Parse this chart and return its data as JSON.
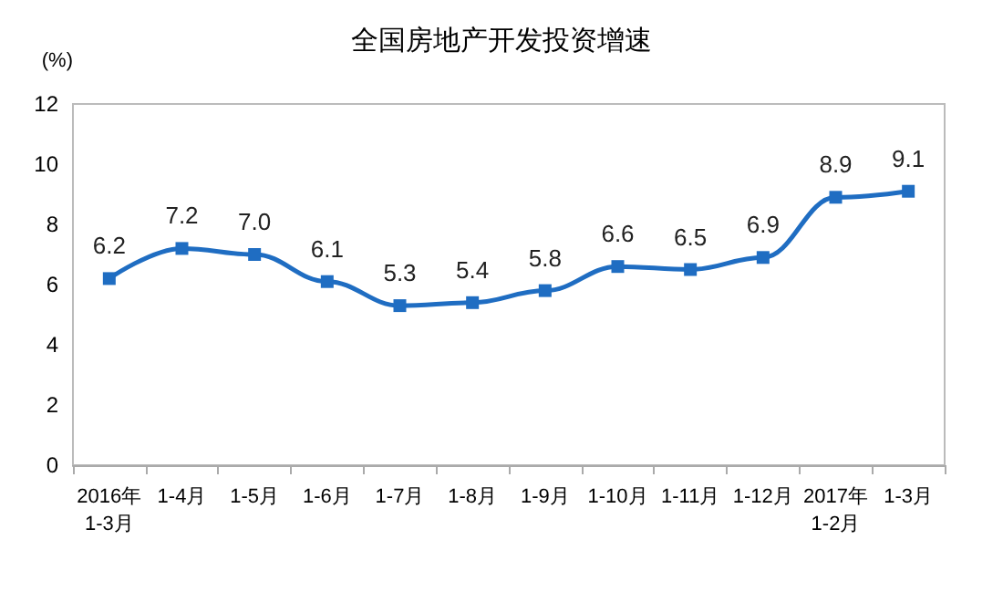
{
  "chart_data": {
    "type": "line",
    "title": "全国房地产开发投资增速",
    "ylabel": "(%)",
    "categories": [
      "2016年\n1-3月",
      "1-4月",
      "1-5月",
      "1-6月",
      "1-7月",
      "1-8月",
      "1-9月",
      "1-10月",
      "1-11月",
      "1-12月",
      "2017年\n1-2月",
      "1-3月"
    ],
    "series": [
      {
        "color": "#1f6dc2",
        "values": [
          6.2,
          7.2,
          7.0,
          6.1,
          5.3,
          5.4,
          5.8,
          6.6,
          6.5,
          6.9,
          8.9,
          9.1
        ],
        "value_labels": [
          "6.2",
          "7.2",
          "7.0",
          "6.1",
          "5.3",
          "5.4",
          "5.8",
          "6.6",
          "6.5",
          "6.9",
          "8.9",
          "9.1"
        ]
      }
    ],
    "ylim": [
      0,
      12
    ],
    "yticks": [
      0,
      2,
      4,
      6,
      8,
      10,
      12
    ],
    "grid": false,
    "marker": "square",
    "line_style": "solid"
  }
}
